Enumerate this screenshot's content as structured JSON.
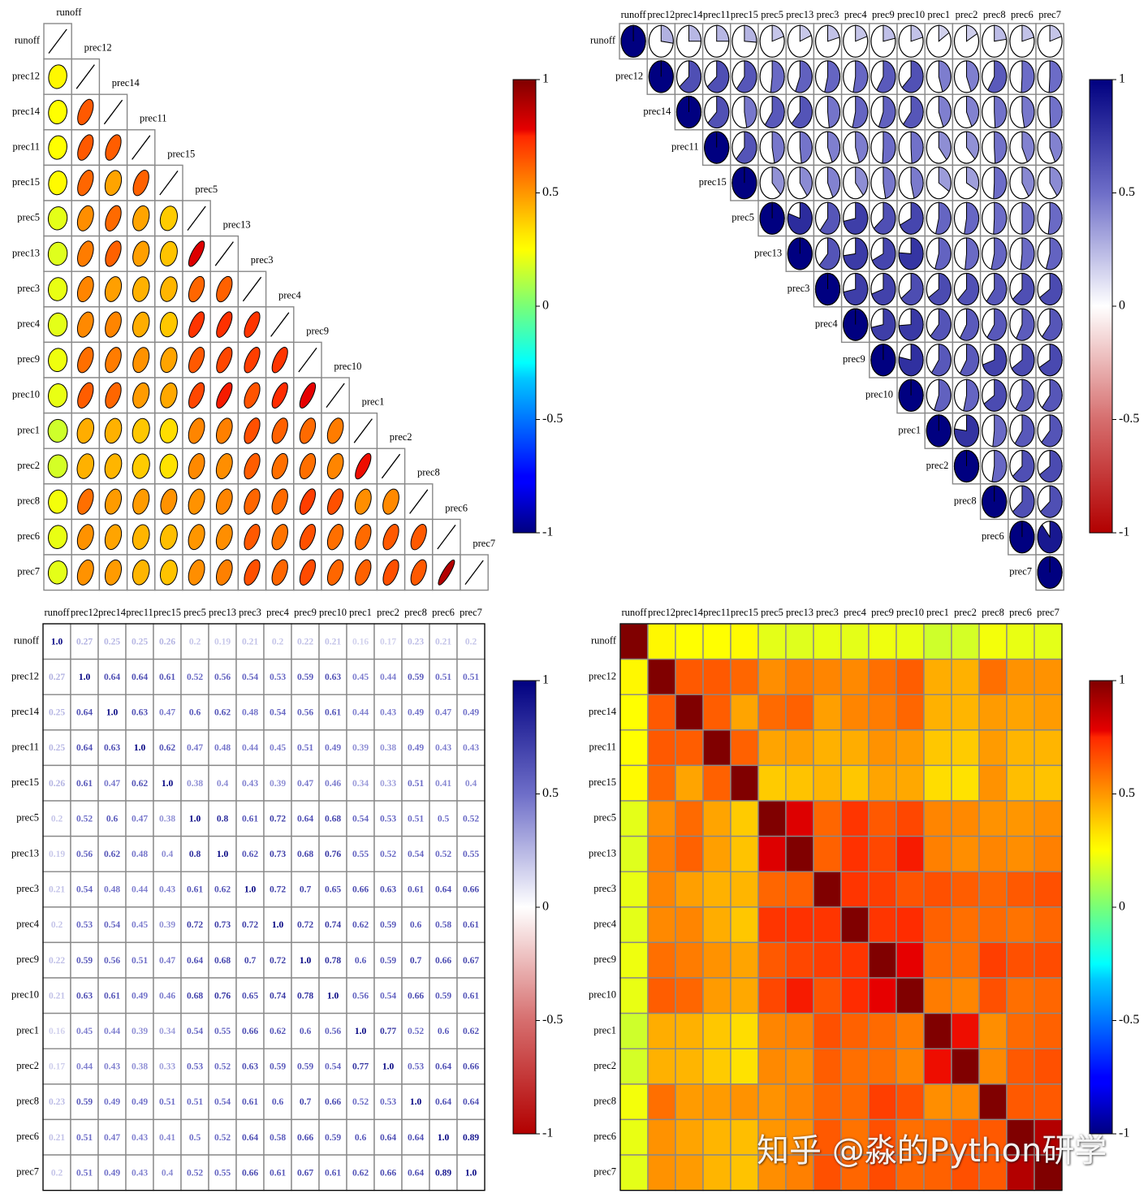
{
  "chart_data": {
    "type": "heatmap",
    "variables": [
      "runoff",
      "prec12",
      "prec14",
      "prec11",
      "prec15",
      "prec5",
      "prec13",
      "prec3",
      "prec4",
      "prec9",
      "prec10",
      "prec1",
      "prec2",
      "prec8",
      "prec6",
      "prec7"
    ],
    "matrix": [
      [
        1.0,
        0.27,
        0.25,
        0.25,
        0.26,
        0.2,
        0.19,
        0.21,
        0.2,
        0.22,
        0.21,
        0.16,
        0.17,
        0.23,
        0.21,
        0.2
      ],
      [
        0.27,
        1.0,
        0.64,
        0.64,
        0.61,
        0.52,
        0.56,
        0.54,
        0.53,
        0.59,
        0.63,
        0.45,
        0.44,
        0.59,
        0.51,
        0.51
      ],
      [
        0.25,
        0.64,
        1.0,
        0.63,
        0.47,
        0.6,
        0.62,
        0.48,
        0.54,
        0.56,
        0.61,
        0.44,
        0.43,
        0.49,
        0.47,
        0.49
      ],
      [
        0.25,
        0.64,
        0.63,
        1.0,
        0.62,
        0.47,
        0.48,
        0.44,
        0.45,
        0.51,
        0.49,
        0.39,
        0.38,
        0.49,
        0.43,
        0.43
      ],
      [
        0.26,
        0.61,
        0.47,
        0.62,
        1.0,
        0.38,
        0.4,
        0.43,
        0.39,
        0.47,
        0.46,
        0.34,
        0.33,
        0.51,
        0.41,
        0.4
      ],
      [
        0.2,
        0.52,
        0.6,
        0.47,
        0.38,
        1.0,
        0.8,
        0.61,
        0.72,
        0.64,
        0.68,
        0.54,
        0.53,
        0.51,
        0.5,
        0.52
      ],
      [
        0.19,
        0.56,
        0.62,
        0.48,
        0.4,
        0.8,
        1.0,
        0.62,
        0.73,
        0.68,
        0.76,
        0.55,
        0.52,
        0.54,
        0.52,
        0.55
      ],
      [
        0.21,
        0.54,
        0.48,
        0.44,
        0.43,
        0.61,
        0.62,
        1.0,
        0.72,
        0.7,
        0.65,
        0.66,
        0.63,
        0.61,
        0.64,
        0.66
      ],
      [
        0.2,
        0.53,
        0.54,
        0.45,
        0.39,
        0.72,
        0.73,
        0.72,
        1.0,
        0.72,
        0.74,
        0.62,
        0.59,
        0.6,
        0.58,
        0.61
      ],
      [
        0.22,
        0.59,
        0.56,
        0.51,
        0.47,
        0.64,
        0.68,
        0.7,
        0.72,
        1.0,
        0.78,
        0.6,
        0.59,
        0.7,
        0.66,
        0.67
      ],
      [
        0.21,
        0.63,
        0.61,
        0.49,
        0.46,
        0.68,
        0.76,
        0.65,
        0.74,
        0.78,
        1.0,
        0.56,
        0.54,
        0.66,
        0.59,
        0.61
      ],
      [
        0.16,
        0.45,
        0.44,
        0.39,
        0.34,
        0.54,
        0.55,
        0.66,
        0.62,
        0.6,
        0.56,
        1.0,
        0.77,
        0.52,
        0.6,
        0.62
      ],
      [
        0.17,
        0.44,
        0.43,
        0.38,
        0.33,
        0.53,
        0.52,
        0.63,
        0.59,
        0.59,
        0.54,
        0.77,
        1.0,
        0.53,
        0.64,
        0.66
      ],
      [
        0.23,
        0.59,
        0.49,
        0.49,
        0.51,
        0.51,
        0.54,
        0.61,
        0.6,
        0.7,
        0.66,
        0.52,
        0.53,
        1.0,
        0.64,
        0.64
      ],
      [
        0.21,
        0.51,
        0.47,
        0.43,
        0.41,
        0.5,
        0.52,
        0.64,
        0.58,
        0.66,
        0.59,
        0.6,
        0.64,
        0.64,
        1.0,
        0.89
      ],
      [
        0.2,
        0.51,
        0.49,
        0.43,
        0.4,
        0.52,
        0.55,
        0.66,
        0.61,
        0.67,
        0.61,
        0.62,
        0.66,
        0.64,
        0.89,
        1.0
      ]
    ],
    "panels": [
      {
        "type": "ellipse",
        "triangle": "lower",
        "colormap": "jet"
      },
      {
        "type": "pie",
        "triangle": "upper",
        "colormap": "red-white-blue"
      },
      {
        "type": "number",
        "triangle": "full",
        "colormap": "red-white-blue"
      },
      {
        "type": "square",
        "triangle": "full",
        "colormap": "jet"
      }
    ],
    "colorbar": {
      "range": [
        -1,
        1
      ],
      "ticks": [
        "1",
        "0.5",
        "0",
        "-0.5",
        "-1"
      ]
    }
  },
  "watermark": "知乎 @淼的Python研学"
}
